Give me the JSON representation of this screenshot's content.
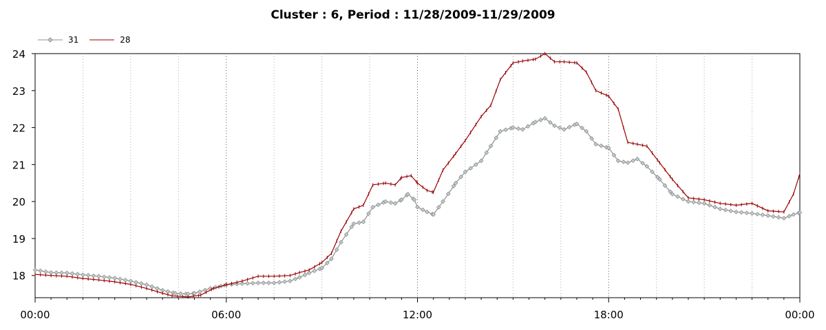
{
  "chart_data": {
    "type": "line",
    "title": "Cluster : 6, Period : 11/28/2009-11/29/2009",
    "xlabel": "",
    "ylabel": "",
    "x_ticks": [
      "00:00",
      "06:00",
      "12:00",
      "18:00",
      "00:00"
    ],
    "xlim_hours": [
      0,
      24
    ],
    "ylim": [
      17.4,
      24
    ],
    "y_ticks": [
      18,
      19,
      20,
      21,
      22,
      23,
      24
    ],
    "grid": "vertical dotted",
    "legend_position": "top-left",
    "series": [
      {
        "name": "31",
        "color": "#8a9090",
        "marker": "diamond",
        "points": [
          [
            0,
            18.15
          ],
          [
            0.5,
            18.08
          ],
          [
            1,
            18.07
          ],
          [
            1.5,
            18.02
          ],
          [
            2,
            17.98
          ],
          [
            2.5,
            17.93
          ],
          [
            3,
            17.85
          ],
          [
            3.5,
            17.75
          ],
          [
            4,
            17.6
          ],
          [
            4.4,
            17.52
          ],
          [
            4.8,
            17.5
          ],
          [
            5,
            17.52
          ],
          [
            5.5,
            17.65
          ],
          [
            6,
            17.75
          ],
          [
            6.5,
            17.78
          ],
          [
            7,
            17.8
          ],
          [
            7.5,
            17.8
          ],
          [
            8,
            17.85
          ],
          [
            8.3,
            17.95
          ],
          [
            8.6,
            18.07
          ],
          [
            9,
            18.2
          ],
          [
            9.3,
            18.45
          ],
          [
            9.6,
            18.9
          ],
          [
            10,
            19.4
          ],
          [
            10.3,
            19.45
          ],
          [
            10.6,
            19.85
          ],
          [
            11,
            20.0
          ],
          [
            11.3,
            19.95
          ],
          [
            11.5,
            20.05
          ],
          [
            11.7,
            20.2
          ],
          [
            11.9,
            20.05
          ],
          [
            12,
            19.85
          ],
          [
            12.3,
            19.72
          ],
          [
            12.5,
            19.65
          ],
          [
            12.8,
            20.0
          ],
          [
            13.2,
            20.5
          ],
          [
            13.5,
            20.8
          ],
          [
            14,
            21.1
          ],
          [
            14.3,
            21.5
          ],
          [
            14.6,
            21.9
          ],
          [
            15,
            22.0
          ],
          [
            15.3,
            21.95
          ],
          [
            15.7,
            22.15
          ],
          [
            16,
            22.25
          ],
          [
            16.3,
            22.05
          ],
          [
            16.6,
            21.95
          ],
          [
            17,
            22.1
          ],
          [
            17.3,
            21.9
          ],
          [
            17.6,
            21.55
          ],
          [
            18,
            21.45
          ],
          [
            18.3,
            21.1
          ],
          [
            18.6,
            21.05
          ],
          [
            18.9,
            21.15
          ],
          [
            19.2,
            20.95
          ],
          [
            19.6,
            20.6
          ],
          [
            20,
            20.2
          ],
          [
            20.5,
            20.0
          ],
          [
            21,
            19.95
          ],
          [
            21.5,
            19.8
          ],
          [
            22,
            19.72
          ],
          [
            22.5,
            19.68
          ],
          [
            23,
            19.62
          ],
          [
            23.5,
            19.55
          ],
          [
            23.8,
            19.65
          ],
          [
            24,
            19.7
          ]
        ]
      },
      {
        "name": "28",
        "color": "#990000",
        "marker": "tick",
        "points": [
          [
            0,
            18.03
          ],
          [
            0.5,
            18.0
          ],
          [
            1,
            17.98
          ],
          [
            1.5,
            17.92
          ],
          [
            2,
            17.88
          ],
          [
            2.5,
            17.83
          ],
          [
            3,
            17.76
          ],
          [
            3.5,
            17.65
          ],
          [
            4,
            17.52
          ],
          [
            4.3,
            17.45
          ],
          [
            4.8,
            17.42
          ],
          [
            5.2,
            17.47
          ],
          [
            5.6,
            17.65
          ],
          [
            6,
            17.75
          ],
          [
            6.5,
            17.85
          ],
          [
            7,
            17.98
          ],
          [
            7.5,
            17.98
          ],
          [
            8,
            18.0
          ],
          [
            8.3,
            18.08
          ],
          [
            8.6,
            18.15
          ],
          [
            9,
            18.35
          ],
          [
            9.3,
            18.6
          ],
          [
            9.6,
            19.2
          ],
          [
            10,
            19.8
          ],
          [
            10.3,
            19.9
          ],
          [
            10.6,
            20.45
          ],
          [
            11,
            20.5
          ],
          [
            11.3,
            20.45
          ],
          [
            11.5,
            20.65
          ],
          [
            11.8,
            20.7
          ],
          [
            12,
            20.5
          ],
          [
            12.3,
            20.3
          ],
          [
            12.5,
            20.25
          ],
          [
            12.8,
            20.85
          ],
          [
            13.2,
            21.3
          ],
          [
            13.5,
            21.65
          ],
          [
            14,
            22.3
          ],
          [
            14.3,
            22.6
          ],
          [
            14.6,
            23.3
          ],
          [
            15,
            23.75
          ],
          [
            15.3,
            23.8
          ],
          [
            15.7,
            23.85
          ],
          [
            16,
            24.0
          ],
          [
            16.3,
            23.78
          ],
          [
            16.6,
            23.78
          ],
          [
            17,
            23.75
          ],
          [
            17.3,
            23.5
          ],
          [
            17.6,
            23.0
          ],
          [
            18,
            22.85
          ],
          [
            18.3,
            22.5
          ],
          [
            18.6,
            21.6
          ],
          [
            18.9,
            21.55
          ],
          [
            19.2,
            21.5
          ],
          [
            19.6,
            21.05
          ],
          [
            20,
            20.6
          ],
          [
            20.5,
            20.1
          ],
          [
            21,
            20.05
          ],
          [
            21.5,
            19.95
          ],
          [
            22,
            19.9
          ],
          [
            22.5,
            19.95
          ],
          [
            23,
            19.75
          ],
          [
            23.5,
            19.72
          ],
          [
            23.8,
            20.2
          ],
          [
            24,
            20.75
          ]
        ]
      }
    ]
  }
}
